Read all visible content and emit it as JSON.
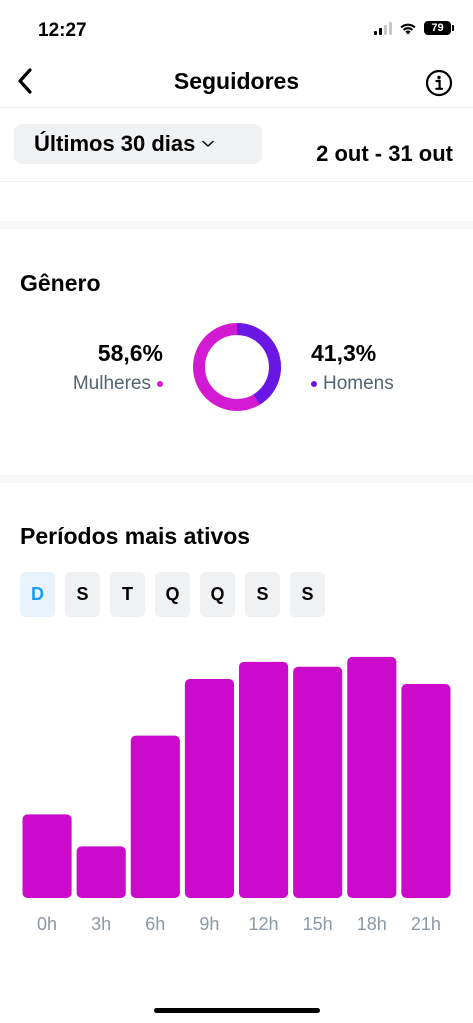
{
  "status_bar": {
    "time": "12:27",
    "battery": "79"
  },
  "header": {
    "title": "Seguidores"
  },
  "date_range": {
    "selected": "Últimos 30 dias",
    "dates": "2 out - 31 out"
  },
  "gender": {
    "title": "Gênero",
    "women": {
      "pct": "58,6%",
      "label": "Mulheres",
      "value": 58.6,
      "color": "#d31ad3"
    },
    "men": {
      "pct": "41,3%",
      "label": "Homens",
      "value": 41.3,
      "color": "#6a17e6"
    }
  },
  "active_periods": {
    "title": "Períodos mais ativos",
    "days": [
      "D",
      "S",
      "T",
      "Q",
      "Q",
      "S",
      "S"
    ],
    "active_day_index": 0,
    "accent": "#1d9bf0"
  },
  "chart_data": {
    "type": "bar",
    "categories": [
      "0h",
      "3h",
      "6h",
      "9h",
      "12h",
      "15h",
      "18h",
      "21h"
    ],
    "values": [
      34,
      21,
      66,
      89,
      96,
      94,
      98,
      87
    ],
    "ylim": [
      0,
      100
    ],
    "color": "#cc0acc",
    "grid": false
  }
}
